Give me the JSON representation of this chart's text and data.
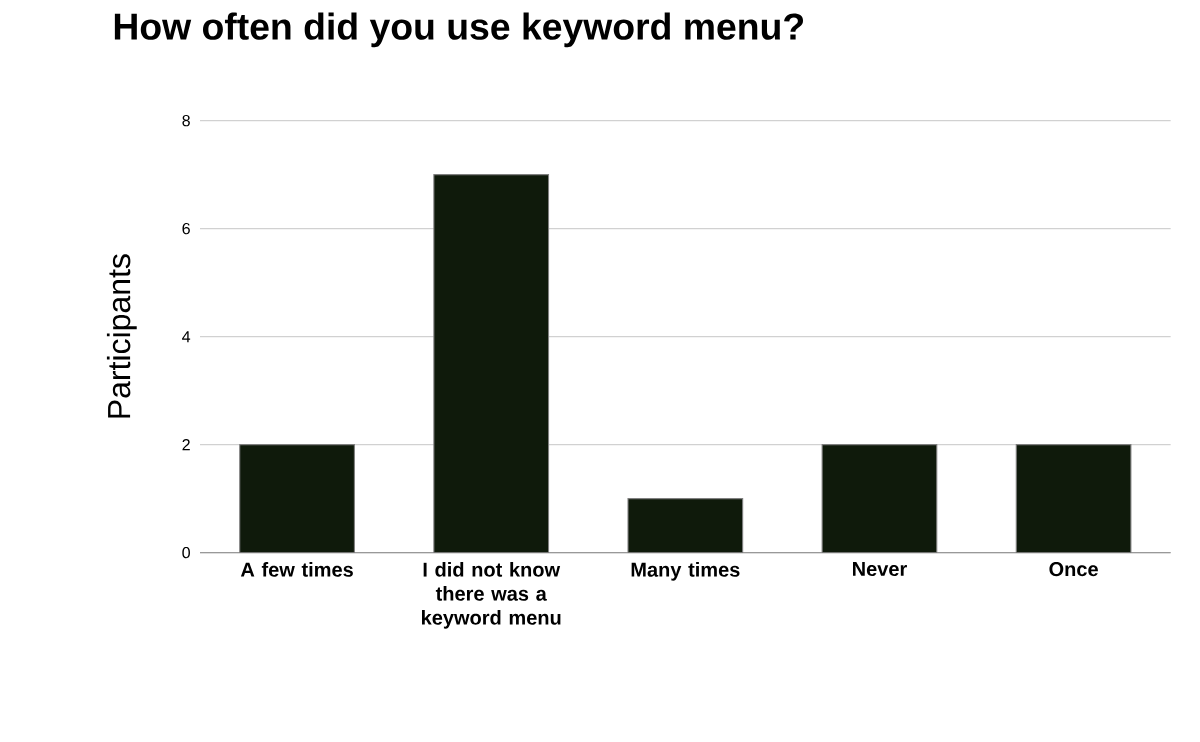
{
  "chart_data": {
    "type": "bar",
    "title": "How often did you use keyword menu?",
    "ylabel": "Participants",
    "categories": [
      "A few times",
      "I did not know there was a keyword menu",
      "Many times",
      "Never",
      "Once"
    ],
    "values": [
      2,
      7,
      1,
      2,
      2
    ],
    "color": "#0f1a0b",
    "ylim": [
      0,
      8
    ],
    "yticks": [
      0,
      2,
      4,
      6,
      8
    ],
    "grid": "y"
  }
}
